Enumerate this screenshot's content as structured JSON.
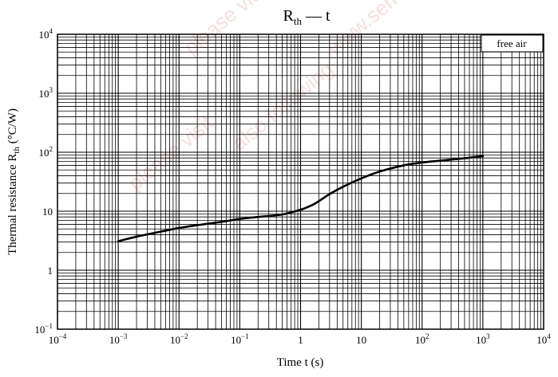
{
  "chart_data": {
    "type": "line",
    "title_main": "R",
    "title_sub": "th",
    "title_rest": " — t",
    "xlabel": "Time  t  (s)",
    "ylabel_main": "Thermal resistance  R",
    "ylabel_sub": "th",
    "ylabel_rest": "  (°C/W)",
    "xscale": "log",
    "yscale": "log",
    "xlim": [
      0.0001,
      10000
    ],
    "ylim": [
      0.1,
      10000
    ],
    "grid": true,
    "x_ticks": [
      {
        "base": "10",
        "exp": "−4",
        "value": 0.0001
      },
      {
        "base": "10",
        "exp": "−3",
        "value": 0.001
      },
      {
        "base": "10",
        "exp": "−2",
        "value": 0.01
      },
      {
        "base": "10",
        "exp": "−1",
        "value": 0.1
      },
      {
        "base": "1",
        "exp": "",
        "value": 1
      },
      {
        "base": "10",
        "exp": "",
        "value": 10
      },
      {
        "base": "10",
        "exp": "2",
        "value": 100
      },
      {
        "base": "10",
        "exp": "3",
        "value": 1000
      },
      {
        "base": "10",
        "exp": "4",
        "value": 10000
      }
    ],
    "y_ticks": [
      {
        "base": "10",
        "exp": "−1",
        "value": 0.1
      },
      {
        "base": "1",
        "exp": "",
        "value": 1
      },
      {
        "base": "10",
        "exp": "",
        "value": 10
      },
      {
        "base": "10",
        "exp": "2",
        "value": 100
      },
      {
        "base": "10",
        "exp": "3",
        "value": 1000
      },
      {
        "base": "10",
        "exp": "4",
        "value": 10000
      }
    ],
    "annotation": "free air",
    "series": [
      {
        "color": "#000000",
        "x": [
          0.001,
          0.002,
          0.005,
          0.01,
          0.02,
          0.05,
          0.1,
          0.2,
          0.5,
          1,
          1.5,
          2,
          3,
          5,
          10,
          20,
          50,
          100,
          200,
          500,
          1000
        ],
        "y": [
          3.1,
          3.7,
          4.5,
          5.2,
          5.8,
          6.6,
          7.4,
          8.0,
          8.8,
          10.6,
          12.5,
          14.8,
          19.5,
          26.0,
          36.0,
          47.0,
          60.0,
          67.0,
          72.0,
          79.0,
          86.0
        ]
      }
    ]
  },
  "watermark": {
    "lines": [
      "please visit following url",
      "www.semiconductor",
      "also following",
      "please visit"
    ],
    "color": "#e9a6a6"
  }
}
